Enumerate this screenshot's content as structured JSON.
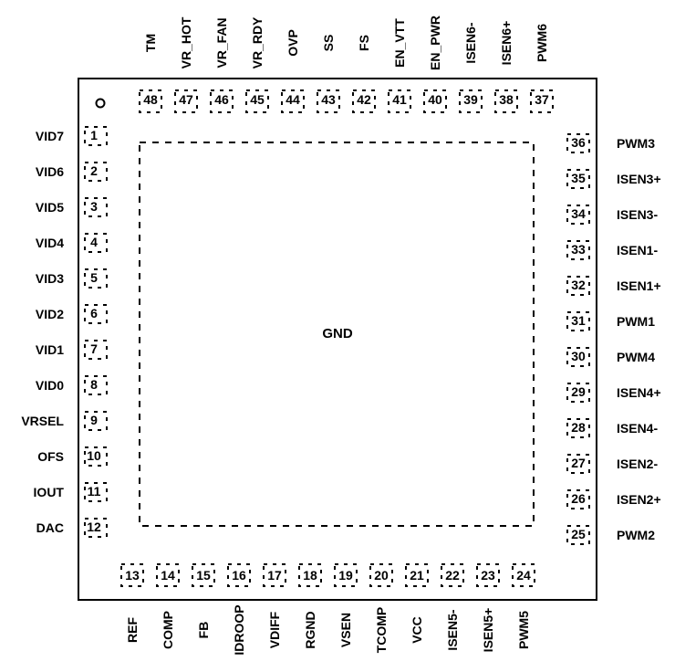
{
  "package": {
    "center_label": "GND",
    "left_pins": [
      {
        "num": "1",
        "name": "VID7"
      },
      {
        "num": "2",
        "name": "VID6"
      },
      {
        "num": "3",
        "name": "VID5"
      },
      {
        "num": "4",
        "name": "VID4"
      },
      {
        "num": "5",
        "name": "VID3"
      },
      {
        "num": "6",
        "name": "VID2"
      },
      {
        "num": "7",
        "name": "VID1"
      },
      {
        "num": "8",
        "name": "VID0"
      },
      {
        "num": "9",
        "name": "VRSEL"
      },
      {
        "num": "10",
        "name": "OFS"
      },
      {
        "num": "11",
        "name": "IOUT"
      },
      {
        "num": "12",
        "name": "DAC"
      }
    ],
    "bottom_pins": [
      {
        "num": "13",
        "name": "REF"
      },
      {
        "num": "14",
        "name": "COMP"
      },
      {
        "num": "15",
        "name": "FB"
      },
      {
        "num": "16",
        "name": "IDROOP"
      },
      {
        "num": "17",
        "name": "VDIFF"
      },
      {
        "num": "18",
        "name": "RGND"
      },
      {
        "num": "19",
        "name": "VSEN"
      },
      {
        "num": "20",
        "name": "TCOMP"
      },
      {
        "num": "21",
        "name": "VCC"
      },
      {
        "num": "22",
        "name": "ISEN5-"
      },
      {
        "num": "23",
        "name": "ISEN5+"
      },
      {
        "num": "24",
        "name": "PWM5"
      }
    ],
    "right_pins": [
      {
        "num": "25",
        "name": "PWM2"
      },
      {
        "num": "26",
        "name": "ISEN2+"
      },
      {
        "num": "27",
        "name": "ISEN2-"
      },
      {
        "num": "28",
        "name": "ISEN4-"
      },
      {
        "num": "29",
        "name": "ISEN4+"
      },
      {
        "num": "30",
        "name": "PWM4"
      },
      {
        "num": "31",
        "name": "PWM1"
      },
      {
        "num": "32",
        "name": "ISEN1+"
      },
      {
        "num": "33",
        "name": "ISEN1-"
      },
      {
        "num": "34",
        "name": "ISEN3-"
      },
      {
        "num": "35",
        "name": "ISEN3+"
      },
      {
        "num": "36",
        "name": "PWM3"
      }
    ],
    "top_pins": [
      {
        "num": "37",
        "name": "PWM6"
      },
      {
        "num": "38",
        "name": "ISEN6+"
      },
      {
        "num": "39",
        "name": "ISEN6-"
      },
      {
        "num": "40",
        "name": "EN_PWR"
      },
      {
        "num": "41",
        "name": "EN_VTT"
      },
      {
        "num": "42",
        "name": "FS"
      },
      {
        "num": "43",
        "name": "SS"
      },
      {
        "num": "44",
        "name": "OVP"
      },
      {
        "num": "45",
        "name": "VR_RDY"
      },
      {
        "num": "46",
        "name": "VR_FAN"
      },
      {
        "num": "47",
        "name": "VR_HOT"
      },
      {
        "num": "48",
        "name": "TM"
      }
    ]
  }
}
